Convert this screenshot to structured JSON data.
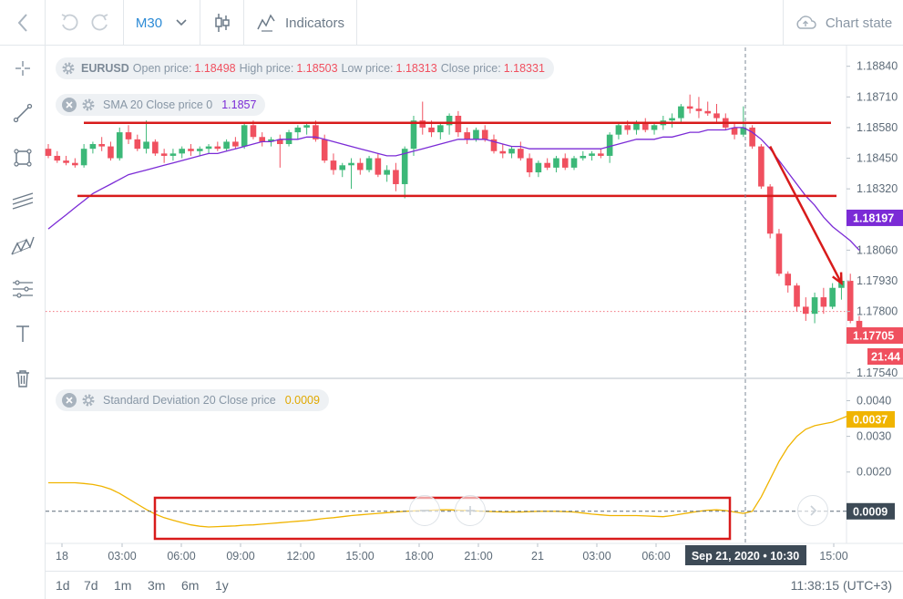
{
  "toolbar": {
    "timeframe": "M30",
    "indicators_label": "Indicators",
    "chart_state_label": "Chart state"
  },
  "periods": [
    "1d",
    "7d",
    "1m",
    "3m",
    "6m",
    "1y"
  ],
  "clock": "11:38:15 (UTC+3)",
  "legend": {
    "symbol": "EURUSD",
    "open_label": "Open price:",
    "open_value": "1.18498",
    "high_label": "High price:",
    "high_value": "1.18503",
    "low_label": "Low price:",
    "low_value": "1.18313",
    "close_label": "Close price:",
    "close_value": "1.18331",
    "sma_label": "SMA 20 Close price 0",
    "sma_value": "1.1857",
    "std_label": "Standard Deviation 20 Close price",
    "std_value": "0.0009"
  },
  "chart_data": [
    {
      "type": "candlestick",
      "symbol": "EURUSD",
      "timeframe": "M30",
      "x_tick_labels": [
        "18",
        "03:00",
        "06:00",
        "09:00",
        "12:00",
        "15:00",
        "18:00",
        "21:00",
        "21",
        "03:00",
        "06:00",
        "15:00"
      ],
      "crosshair_x_label": "Sep 21, 2020 • 10:30",
      "y_tick_labels": [
        "1.18840",
        "1.18710",
        "1.18580",
        "1.18450",
        "1.18320",
        "1.18197",
        "1.18060",
        "1.17930",
        "1.17800",
        "1.17705",
        "1.17540"
      ],
      "ylim": [
        1.1752,
        1.1892
      ],
      "last_price": "1.17705",
      "countdown": "21:44",
      "sma_value": "1.18197",
      "sma_color": "#7b2bd6",
      "up_color": "#3cb878",
      "down_color": "#f0505f",
      "candles": [
        [
          1.1849,
          1.1851,
          1.1845,
          1.1846
        ],
        [
          1.1846,
          1.1848,
          1.1843,
          1.1844
        ],
        [
          1.1844,
          1.1846,
          1.1842,
          1.1843
        ],
        [
          1.1843,
          1.1845,
          1.1841,
          1.1842
        ],
        [
          1.1842,
          1.1851,
          1.1841,
          1.1849
        ],
        [
          1.1849,
          1.1852,
          1.1847,
          1.1851
        ],
        [
          1.1851,
          1.1854,
          1.1848,
          1.185
        ],
        [
          1.185,
          1.1852,
          1.1844,
          1.1845
        ],
        [
          1.1845,
          1.1858,
          1.1844,
          1.1856
        ],
        [
          1.1856,
          1.1859,
          1.1851,
          1.1853
        ],
        [
          1.1853,
          1.1855,
          1.1848,
          1.1849
        ],
        [
          1.1849,
          1.1861,
          1.1847,
          1.1852
        ],
        [
          1.1852,
          1.1853,
          1.1846,
          1.1847
        ],
        [
          1.1847,
          1.1849,
          1.1843,
          1.1846
        ],
        [
          1.1846,
          1.1849,
          1.1844,
          1.1847
        ],
        [
          1.1847,
          1.185,
          1.1845,
          1.1849
        ],
        [
          1.1849,
          1.1851,
          1.1846,
          1.1848
        ],
        [
          1.1848,
          1.185,
          1.1846,
          1.1849
        ],
        [
          1.1849,
          1.1851,
          1.1847,
          1.185
        ],
        [
          1.185,
          1.1852,
          1.1848,
          1.1849
        ],
        [
          1.1849,
          1.1853,
          1.1848,
          1.1852
        ],
        [
          1.1852,
          1.1854,
          1.1849,
          1.185
        ],
        [
          1.185,
          1.186,
          1.1849,
          1.1859
        ],
        [
          1.1859,
          1.1861,
          1.1853,
          1.1854
        ],
        [
          1.1854,
          1.1856,
          1.185,
          1.1852
        ],
        [
          1.1852,
          1.1854,
          1.185,
          1.1853
        ],
        [
          1.1853,
          1.1855,
          1.1841,
          1.1851
        ],
        [
          1.1851,
          1.1857,
          1.185,
          1.1856
        ],
        [
          1.1856,
          1.1859,
          1.1853,
          1.1858
        ],
        [
          1.1858,
          1.186,
          1.1855,
          1.1859
        ],
        [
          1.1859,
          1.1861,
          1.1852,
          1.1853
        ],
        [
          1.1853,
          1.1855,
          1.1843,
          1.1844
        ],
        [
          1.1844,
          1.1847,
          1.1838,
          1.184
        ],
        [
          1.184,
          1.1843,
          1.1837,
          1.1842
        ],
        [
          1.1842,
          1.1845,
          1.1832,
          1.1843
        ],
        [
          1.1843,
          1.1845,
          1.1838,
          1.184
        ],
        [
          1.184,
          1.1846,
          1.1839,
          1.1845
        ],
        [
          1.1845,
          1.1847,
          1.1837,
          1.1838
        ],
        [
          1.1838,
          1.1842,
          1.1835,
          1.184
        ],
        [
          1.184,
          1.1843,
          1.1831,
          1.1834
        ],
        [
          1.1834,
          1.185,
          1.1828,
          1.1849
        ],
        [
          1.1849,
          1.1863,
          1.1846,
          1.1861
        ],
        [
          1.1861,
          1.1869,
          1.1855,
          1.1858
        ],
        [
          1.1858,
          1.1861,
          1.1854,
          1.1856
        ],
        [
          1.1856,
          1.186,
          1.1853,
          1.1859
        ],
        [
          1.1859,
          1.1864,
          1.1855,
          1.1863
        ],
        [
          1.1863,
          1.1865,
          1.1854,
          1.1856
        ],
        [
          1.1856,
          1.1858,
          1.1851,
          1.1853
        ],
        [
          1.1853,
          1.1858,
          1.1852,
          1.1857
        ],
        [
          1.1857,
          1.1859,
          1.1852,
          1.1853
        ],
        [
          1.1853,
          1.1855,
          1.1847,
          1.1848
        ],
        [
          1.1848,
          1.1851,
          1.1845,
          1.1847
        ],
        [
          1.1847,
          1.185,
          1.1845,
          1.1849
        ],
        [
          1.1849,
          1.1852,
          1.1844,
          1.1845
        ],
        [
          1.1845,
          1.1847,
          1.1837,
          1.1839
        ],
        [
          1.1839,
          1.1844,
          1.1837,
          1.1843
        ],
        [
          1.1843,
          1.1845,
          1.184,
          1.1841
        ],
        [
          1.1841,
          1.1846,
          1.1839,
          1.1845
        ],
        [
          1.1845,
          1.1847,
          1.184,
          1.1841
        ],
        [
          1.1841,
          1.1846,
          1.184,
          1.1845
        ],
        [
          1.1845,
          1.1848,
          1.1844,
          1.1846
        ],
        [
          1.1846,
          1.1848,
          1.1844,
          1.1847
        ],
        [
          1.1847,
          1.1849,
          1.1845,
          1.1846
        ],
        [
          1.1846,
          1.1856,
          1.1843,
          1.1855
        ],
        [
          1.1855,
          1.186,
          1.1853,
          1.1859
        ],
        [
          1.1859,
          1.1861,
          1.1855,
          1.1857
        ],
        [
          1.1857,
          1.1861,
          1.1855,
          1.186
        ],
        [
          1.186,
          1.1862,
          1.1856,
          1.1857
        ],
        [
          1.1857,
          1.186,
          1.1855,
          1.1859
        ],
        [
          1.1859,
          1.1863,
          1.1857,
          1.1861
        ],
        [
          1.1861,
          1.1864,
          1.1858,
          1.1862
        ],
        [
          1.1862,
          1.1868,
          1.186,
          1.1867
        ],
        [
          1.1867,
          1.1872,
          1.1864,
          1.1866
        ],
        [
          1.1866,
          1.1871,
          1.1862,
          1.1865
        ],
        [
          1.1865,
          1.1869,
          1.1863,
          1.1864
        ],
        [
          1.1864,
          1.1868,
          1.186,
          1.1862
        ],
        [
          1.1862,
          1.1864,
          1.1857,
          1.1858
        ],
        [
          1.1858,
          1.186,
          1.1853,
          1.1855
        ],
        [
          1.1855,
          1.1867,
          1.1854,
          1.1858
        ],
        [
          1.1858,
          1.1859,
          1.1849,
          1.185
        ],
        [
          1.185,
          1.1851,
          1.1832,
          1.1833
        ],
        [
          1.1833,
          1.1834,
          1.1811,
          1.1813
        ],
        [
          1.1813,
          1.1815,
          1.1795,
          1.1796
        ],
        [
          1.1796,
          1.1797,
          1.1788,
          1.1791
        ],
        [
          1.1791,
          1.1792,
          1.178,
          1.1782
        ],
        [
          1.1782,
          1.1786,
          1.1776,
          1.1779
        ],
        [
          1.1779,
          1.1788,
          1.1775,
          1.1786
        ],
        [
          1.1786,
          1.179,
          1.1779,
          1.1782
        ],
        [
          1.1782,
          1.1792,
          1.1781,
          1.179
        ],
        [
          1.179,
          1.1795,
          1.1785,
          1.1793
        ],
        [
          1.1793,
          1.1796,
          1.1775,
          1.1776
        ],
        [
          1.1776,
          1.1778,
          1.177,
          1.1771
        ]
      ],
      "sma": [
        1.1815,
        1.1818,
        1.1821,
        1.1824,
        1.1827,
        1.183,
        1.1832,
        1.1834,
        1.1836,
        1.1838,
        1.1839,
        1.184,
        1.1841,
        1.1842,
        1.1843,
        1.1844,
        1.1845,
        1.1846,
        1.1847,
        1.1847,
        1.1848,
        1.1849,
        1.185,
        1.1851,
        1.1852,
        1.1852,
        1.1853,
        1.1853,
        1.1853,
        1.1854,
        1.1854,
        1.1853,
        1.1852,
        1.1851,
        1.185,
        1.1849,
        1.1848,
        1.1847,
        1.1846,
        1.1846,
        1.1847,
        1.1848,
        1.1849,
        1.185,
        1.1851,
        1.1852,
        1.1853,
        1.1853,
        1.1853,
        1.1853,
        1.1852,
        1.1851,
        1.185,
        1.185,
        1.1849,
        1.1849,
        1.1849,
        1.1849,
        1.1849,
        1.1849,
        1.1849,
        1.1849,
        1.1849,
        1.185,
        1.1851,
        1.1852,
        1.1853,
        1.1853,
        1.1853,
        1.1854,
        1.1854,
        1.1855,
        1.1856,
        1.1856,
        1.1857,
        1.1857,
        1.1857,
        1.1858,
        1.1858,
        1.1856,
        1.1853,
        1.1849,
        1.1844,
        1.1839,
        1.1834,
        1.1829,
        1.1825,
        1.182,
        1.1816,
        1.1813,
        1.181,
        1.1806
      ],
      "horizontal_lines": [
        1.186,
        1.1829
      ],
      "trend_arrow": [
        [
          81,
          1.185
        ],
        [
          89,
          1.1792
        ]
      ],
      "current_price_line": 1.178
    },
    {
      "type": "line",
      "name": "Standard Deviation 20 Close price",
      "y_tick_labels": [
        "0.0040",
        "0.0037",
        "0.0030",
        "0.0020",
        "0.0009"
      ],
      "ylim": [
        0.0,
        0.0046
      ],
      "last_value": "0.0037",
      "color": "#f0b400",
      "values": [
        0.0017,
        0.0017,
        0.0017,
        0.0017,
        0.00168,
        0.00165,
        0.0016,
        0.00152,
        0.0014,
        0.00125,
        0.0011,
        0.00095,
        0.00082,
        0.00072,
        0.00065,
        0.00058,
        0.00052,
        0.00048,
        0.00046,
        0.00047,
        0.00048,
        0.00049,
        0.00051,
        0.00052,
        0.00054,
        0.00056,
        0.00058,
        0.0006,
        0.00062,
        0.00064,
        0.00067,
        0.0007,
        0.00072,
        0.00075,
        0.00078,
        0.0008,
        0.00082,
        0.00084,
        0.00086,
        0.00088,
        0.0009,
        0.00091,
        0.00092,
        0.00093,
        0.00094,
        0.00094,
        0.00093,
        0.00092,
        0.00091,
        0.0009,
        0.00089,
        0.00088,
        0.00088,
        0.00088,
        0.00089,
        0.0009,
        0.0009,
        0.0009,
        0.00089,
        0.00088,
        0.00085,
        0.00082,
        0.0008,
        0.00078,
        0.00078,
        0.00078,
        0.00078,
        0.00077,
        0.00076,
        0.00075,
        0.00078,
        0.00082,
        0.00086,
        0.0009,
        0.00093,
        0.00094,
        0.00092,
        0.00088,
        0.00084,
        0.0009,
        0.0013,
        0.0018,
        0.0023,
        0.0027,
        0.003,
        0.0032,
        0.0033,
        0.00335,
        0.0034,
        0.0035,
        0.0036,
        0.0037
      ],
      "baseline": 0.0009
    }
  ]
}
